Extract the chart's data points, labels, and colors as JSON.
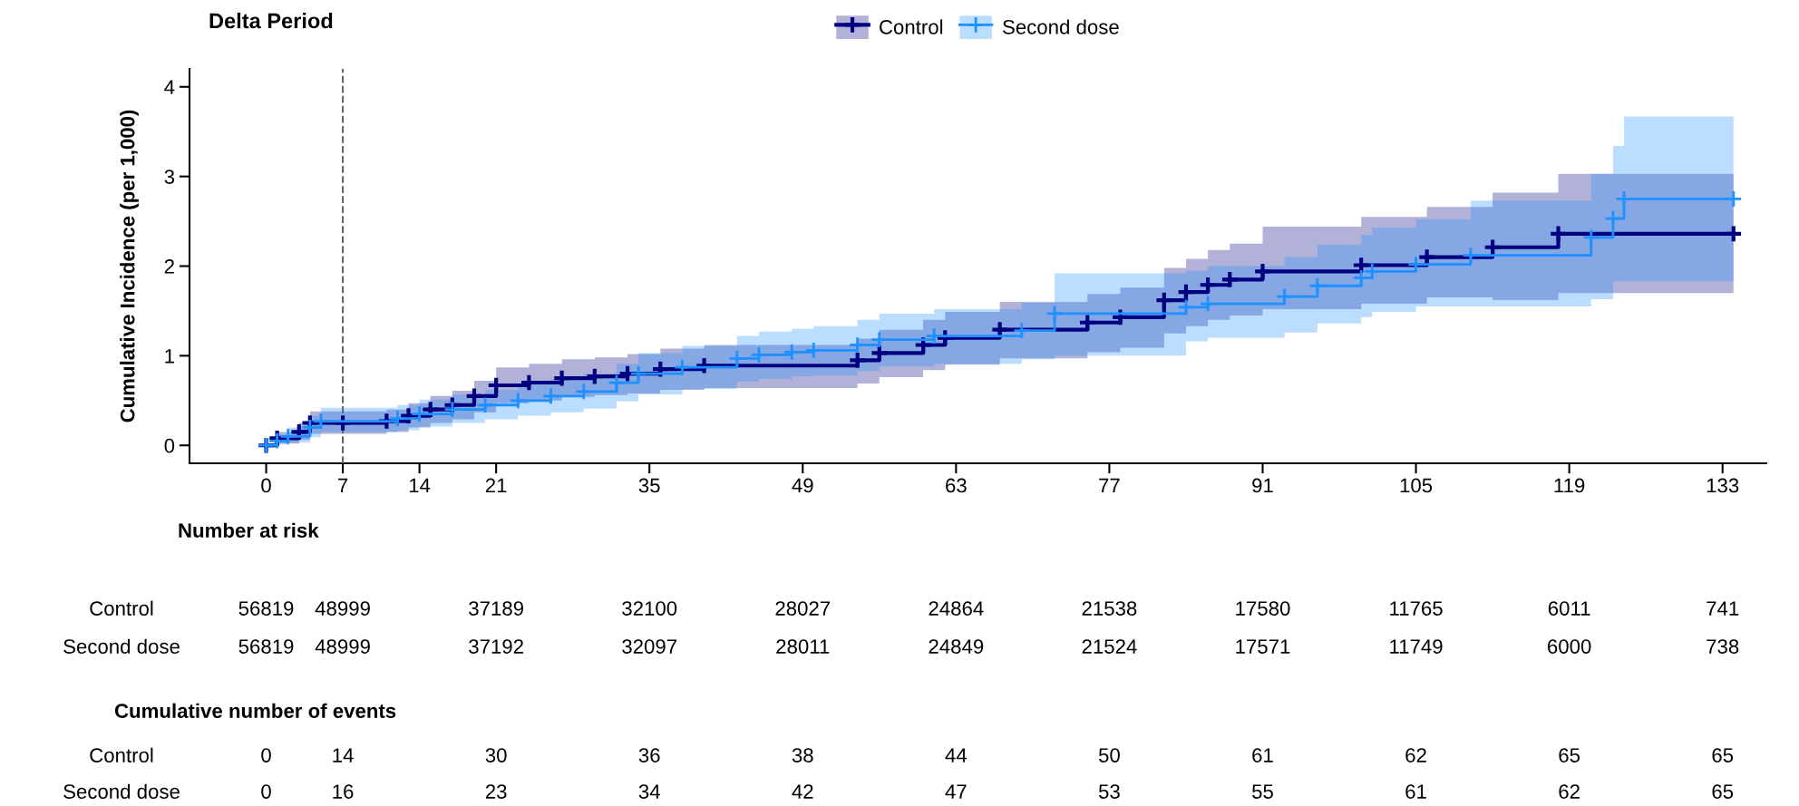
{
  "chart_data": {
    "type": "step",
    "title": "Delta Period",
    "ylabel": "Cumulative Incidence (per 1,000)",
    "xlim": [
      -7,
      137
    ],
    "xticks": [
      0,
      7,
      14,
      21,
      35,
      49,
      63,
      77,
      91,
      105,
      119,
      133
    ],
    "ylim": [
      -0.2,
      4.2
    ],
    "yticks": [
      0,
      1,
      2,
      3,
      4
    ],
    "grid": false,
    "legend": "top",
    "marker": "cross",
    "line_style": "solid",
    "ref_lines": [
      {
        "axis": "x",
        "value": 7,
        "color": "#666666",
        "line_style": "dashed"
      }
    ],
    "series": [
      {
        "name": "Control",
        "color": "#000080",
        "x": [
          0,
          1,
          3,
          4,
          7,
          11,
          13,
          15,
          17,
          19,
          21,
          24,
          27,
          30,
          33,
          36,
          40,
          54,
          56,
          60,
          62,
          67,
          75,
          78,
          82,
          84,
          86,
          88,
          91,
          100,
          106,
          112,
          118,
          134
        ],
        "values": [
          0,
          0.08,
          0.15,
          0.25,
          0.25,
          0.27,
          0.33,
          0.4,
          0.45,
          0.55,
          0.67,
          0.7,
          0.75,
          0.77,
          0.8,
          0.85,
          0.89,
          0.95,
          1.03,
          1.12,
          1.2,
          1.29,
          1.37,
          1.43,
          1.62,
          1.71,
          1.79,
          1.85,
          1.94,
          2.01,
          2.1,
          2.21,
          2.36,
          2.36
        ],
        "lower": [
          0,
          0.02,
          0.06,
          0.13,
          0.13,
          0.15,
          0.2,
          0.25,
          0.29,
          0.37,
          0.47,
          0.5,
          0.54,
          0.56,
          0.58,
          0.62,
          0.64,
          0.69,
          0.76,
          0.84,
          0.9,
          0.97,
          1.04,
          1.09,
          1.25,
          1.33,
          1.4,
          1.45,
          1.52,
          1.58,
          1.65,
          1.62,
          1.7,
          1.7
        ],
        "upper": [
          0,
          0.15,
          0.25,
          0.38,
          0.38,
          0.4,
          0.47,
          0.55,
          0.61,
          0.72,
          0.87,
          0.91,
          0.96,
          0.98,
          1.02,
          1.08,
          1.12,
          1.19,
          1.29,
          1.4,
          1.49,
          1.6,
          1.69,
          1.76,
          1.98,
          2.08,
          2.18,
          2.25,
          2.44,
          2.55,
          2.66,
          2.82,
          3.03,
          3.03
        ]
      },
      {
        "name": "Second dose",
        "color": "#1e90ff",
        "x": [
          0,
          1,
          2,
          4,
          5,
          12,
          14,
          17,
          20,
          23,
          26,
          29,
          32,
          34,
          38,
          43,
          45,
          48,
          50,
          54,
          56,
          61,
          69,
          72,
          84,
          86,
          93,
          96,
          100,
          101,
          105,
          110,
          121,
          123,
          124,
          134
        ],
        "values": [
          0,
          0.05,
          0.1,
          0.2,
          0.27,
          0.3,
          0.35,
          0.4,
          0.45,
          0.5,
          0.55,
          0.6,
          0.7,
          0.8,
          0.87,
          0.97,
          1.01,
          1.04,
          1.06,
          1.12,
          1.18,
          1.22,
          1.28,
          1.47,
          1.54,
          1.58,
          1.66,
          1.78,
          1.87,
          1.94,
          2.02,
          2.12,
          2.32,
          2.53,
          2.75,
          2.75
        ],
        "lower": [
          0,
          0.01,
          0.03,
          0.09,
          0.15,
          0.17,
          0.21,
          0.25,
          0.29,
          0.33,
          0.37,
          0.41,
          0.49,
          0.57,
          0.63,
          0.71,
          0.74,
          0.77,
          0.78,
          0.83,
          0.88,
          0.91,
          0.96,
          1.0,
          1.16,
          1.2,
          1.26,
          1.36,
          1.43,
          1.49,
          1.55,
          1.55,
          1.63,
          1.83,
          1.83,
          1.83
        ],
        "upper": [
          0,
          0.12,
          0.2,
          0.33,
          0.42,
          0.45,
          0.51,
          0.57,
          0.62,
          0.68,
          0.74,
          0.8,
          0.91,
          1.03,
          1.11,
          1.22,
          1.27,
          1.3,
          1.33,
          1.4,
          1.47,
          1.52,
          1.59,
          1.92,
          1.95,
          2.0,
          2.1,
          2.24,
          2.35,
          2.43,
          2.52,
          2.73,
          3.03,
          3.34,
          3.67,
          3.67
        ]
      }
    ],
    "annotations": [
      "Number at risk",
      "Control",
      "56819",
      "48999",
      "37189",
      "32100",
      "28027",
      "24864",
      "21538",
      "17580",
      "11765",
      "6011",
      "741",
      "Second dose",
      "56819",
      "48999",
      "37192",
      "32097",
      "28011",
      "24849",
      "21524",
      "17571",
      "11749",
      "6000",
      "738",
      "Cumulative number of events",
      "Control",
      "0",
      "14",
      "30",
      "36",
      "38",
      "44",
      "50",
      "61",
      "62",
      "65",
      "65",
      "Second dose",
      "0",
      "16",
      "23",
      "34",
      "42",
      "47",
      "53",
      "55",
      "61",
      "62",
      "65"
    ]
  }
}
